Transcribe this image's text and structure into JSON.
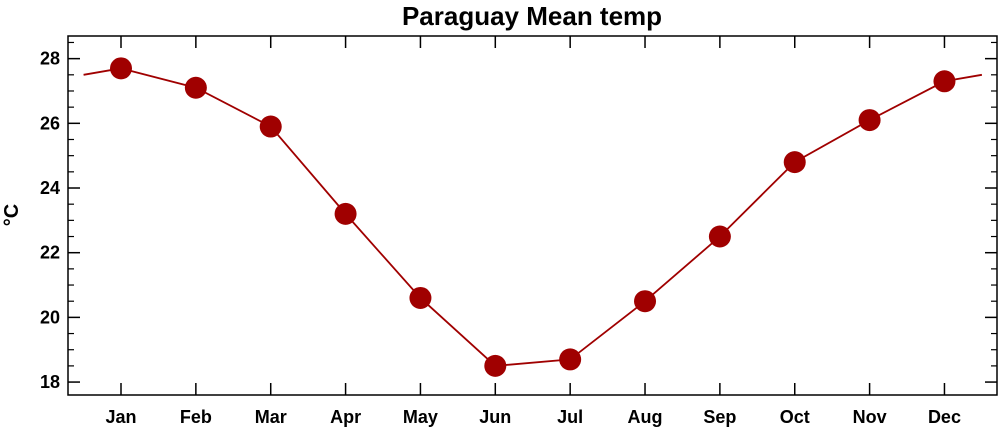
{
  "chart_data": {
    "type": "line",
    "title": "Paraguay Mean temp",
    "xlabel": "",
    "ylabel": "°C",
    "categories": [
      "Jan",
      "Feb",
      "Mar",
      "Apr",
      "May",
      "Jun",
      "Jul",
      "Aug",
      "Sep",
      "Oct",
      "Nov",
      "Dec"
    ],
    "series": [
      {
        "values": [
          27.7,
          27.1,
          25.9,
          23.2,
          20.6,
          18.5,
          18.7,
          20.5,
          22.5,
          24.8,
          26.1,
          27.3
        ]
      }
    ],
    "ylim": [
      17.6,
      28.7
    ],
    "yticks": [
      18,
      20,
      22,
      24,
      26,
      28
    ],
    "wrap_values": {
      "left": 27.5,
      "right": 27.5
    },
    "grid": false,
    "legend": "none",
    "colors": {
      "line": "#a00000",
      "marker": "#a00000",
      "axis": "#000000"
    }
  }
}
